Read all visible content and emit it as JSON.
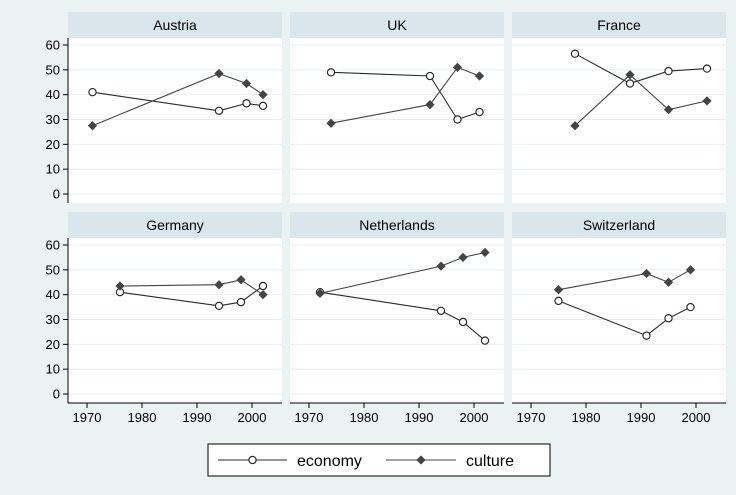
{
  "chart_data": {
    "type": "line",
    "layout": "small-multiples 3x2",
    "xlim": [
      1968,
      2004
    ],
    "ylim": [
      0,
      60
    ],
    "x_ticks": [
      1970,
      1980,
      1990,
      2000
    ],
    "y_ticks": [
      0,
      10,
      20,
      30,
      40,
      50,
      60
    ],
    "grid": true,
    "legend_position": "bottom",
    "series_style": [
      {
        "name": "economy",
        "marker": "hollow-circle",
        "color": "#2a2a2a"
      },
      {
        "name": "culture",
        "marker": "filled-diamond",
        "color": "#444444"
      }
    ],
    "panels": [
      {
        "label": "Austria",
        "series": [
          {
            "name": "economy",
            "points": [
              [
                1971,
                41
              ],
              [
                1994,
                33.5
              ],
              [
                1999,
                36.5
              ],
              [
                2002,
                35.5
              ]
            ]
          },
          {
            "name": "culture",
            "points": [
              [
                1971,
                27.5
              ],
              [
                1994,
                48.5
              ],
              [
                1999,
                44.5
              ],
              [
                2002,
                40
              ]
            ]
          }
        ]
      },
      {
        "label": "UK",
        "series": [
          {
            "name": "economy",
            "points": [
              [
                1974,
                49
              ],
              [
                1992,
                47.5
              ],
              [
                1997,
                30
              ],
              [
                2001,
                33
              ]
            ]
          },
          {
            "name": "culture",
            "points": [
              [
                1974,
                28.5
              ],
              [
                1992,
                36
              ],
              [
                1997,
                51
              ],
              [
                2001,
                47.5
              ]
            ]
          }
        ]
      },
      {
        "label": "France",
        "series": [
          {
            "name": "economy",
            "points": [
              [
                1978,
                56.5
              ],
              [
                1988,
                44.5
              ],
              [
                1995,
                49.5
              ],
              [
                2002,
                50.5
              ]
            ]
          },
          {
            "name": "culture",
            "points": [
              [
                1978,
                27.5
              ],
              [
                1988,
                48
              ],
              [
                1995,
                34
              ],
              [
                2002,
                37.5
              ]
            ]
          }
        ]
      },
      {
        "label": "Germany",
        "series": [
          {
            "name": "economy",
            "points": [
              [
                1976,
                41
              ],
              [
                1994,
                35.5
              ],
              [
                1998,
                37
              ],
              [
                2002,
                43.5
              ]
            ]
          },
          {
            "name": "culture",
            "points": [
              [
                1976,
                43.5
              ],
              [
                1994,
                44
              ],
              [
                1998,
                46
              ],
              [
                2002,
                40
              ]
            ]
          }
        ]
      },
      {
        "label": "Netherlands",
        "series": [
          {
            "name": "economy",
            "points": [
              [
                1972,
                41
              ],
              [
                1994,
                33.5
              ],
              [
                1998,
                29
              ],
              [
                2002,
                21.5
              ]
            ]
          },
          {
            "name": "culture",
            "points": [
              [
                1972,
                40.5
              ],
              [
                1994,
                51.5
              ],
              [
                1998,
                55
              ],
              [
                2002,
                57
              ]
            ]
          }
        ]
      },
      {
        "label": "Switzerland",
        "series": [
          {
            "name": "economy",
            "points": [
              [
                1975,
                37.5
              ],
              [
                1991,
                23.5
              ],
              [
                1995,
                30.5
              ],
              [
                1999,
                35
              ]
            ]
          },
          {
            "name": "culture",
            "points": [
              [
                1975,
                42
              ],
              [
                1991,
                48.5
              ],
              [
                1995,
                45
              ],
              [
                1999,
                50
              ]
            ]
          }
        ]
      }
    ],
    "legend": [
      "economy",
      "culture"
    ]
  }
}
